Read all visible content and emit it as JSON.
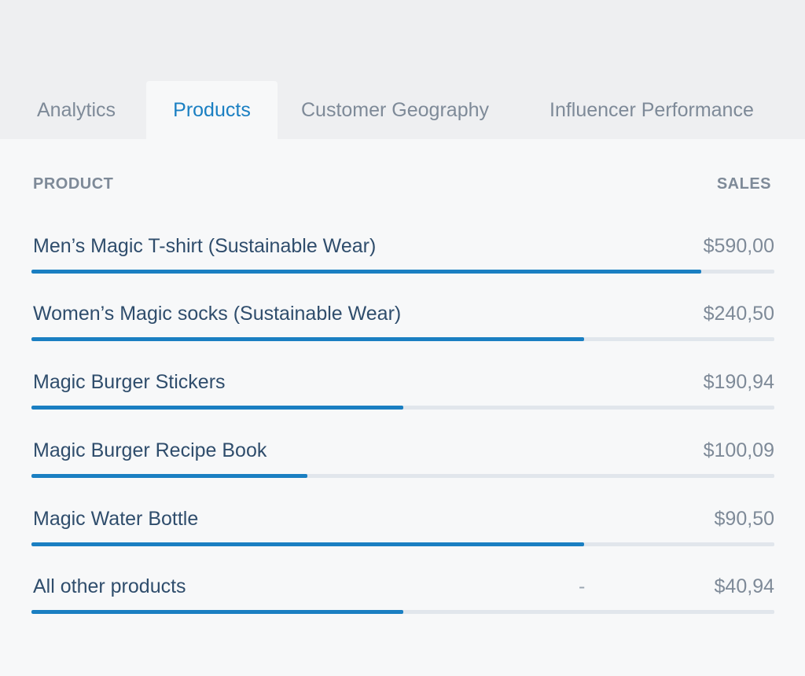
{
  "tabs": [
    {
      "label": "Analytics",
      "active": false
    },
    {
      "label": "Products",
      "active": true
    },
    {
      "label": "Customer Geography",
      "active": false
    },
    {
      "label": "Influencer Performance",
      "active": false
    }
  ],
  "table": {
    "header_product": "PRODUCT",
    "header_sales": "SALES",
    "rows": [
      {
        "name": "Men’s Magic T-shirt (Sustainable Wear)",
        "value": "$590,00",
        "trend": "",
        "bar_fraction": 0.902
      },
      {
        "name": "Women’s Magic socks (Sustainable Wear)",
        "value": "$240,50",
        "trend": "",
        "bar_fraction": 0.744
      },
      {
        "name": "Magic Burger Stickers",
        "value": "$190,94",
        "trend": "",
        "bar_fraction": 0.5
      },
      {
        "name": "Magic Burger Recipe Book",
        "value": "$100,09",
        "trend": "",
        "bar_fraction": 0.371
      },
      {
        "name": "Magic Water Bottle",
        "value": "$90,50",
        "trend": "",
        "bar_fraction": 0.744
      },
      {
        "name": "All other products",
        "value": "$40,94",
        "trend": "-",
        "bar_fraction": 0.5
      }
    ]
  },
  "colors": {
    "accent": "#1a7fc2",
    "track": "#e1e6ec",
    "text_dark": "#2f4d6c",
    "text_muted": "#7e8a98"
  }
}
